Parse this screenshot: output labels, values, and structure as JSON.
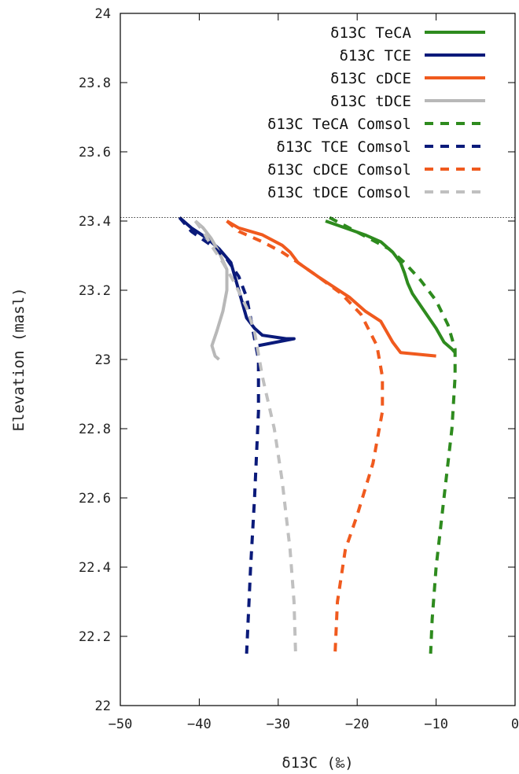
{
  "chart_data": {
    "type": "line",
    "xlabel": "δ13C (‰)",
    "ylabel": "Elevation (masl)",
    "xlim": [
      -50,
      0
    ],
    "ylim": [
      22,
      24
    ],
    "xticks": [
      -50,
      -40,
      -30,
      -20,
      -10,
      0
    ],
    "xtick_labels": [
      "−50",
      "−40",
      "−30",
      "−20",
      "−10",
      "0"
    ],
    "yticks": [
      22,
      22.2,
      22.4,
      22.6,
      22.8,
      23,
      23.2,
      23.4,
      23.6,
      23.8,
      24
    ],
    "ytick_labels": [
      "22",
      "22.2",
      "22.4",
      "22.6",
      "22.8",
      "23",
      "23.2",
      "23.4",
      "23.6",
      "23.8",
      "24"
    ],
    "reference_line": {
      "y": 23.41,
      "style": "dotted"
    },
    "legend_position": "top-right",
    "series": [
      {
        "name": "δ13C TeCA",
        "color": "#2e8b1e",
        "style": "solid",
        "x": [
          -24.0,
          -21.5,
          -19.0,
          -17.0,
          -15.5,
          -14.5,
          -14.0,
          -13.6,
          -13.0,
          -11.5,
          -10.0,
          -9.0,
          -8.0,
          -7.6
        ],
        "y": [
          23.4,
          23.38,
          23.36,
          23.34,
          23.31,
          23.28,
          23.25,
          23.22,
          23.19,
          23.14,
          23.09,
          23.05,
          23.03,
          23.02
        ]
      },
      {
        "name": "δ13C TCE",
        "color": "#0a1a7a",
        "style": "solid",
        "x": [
          -42.5,
          -41.0,
          -39.0,
          -37.5,
          -36.0,
          -35.5,
          -35.0,
          -34.5,
          -34.0,
          -33.0,
          -32.0,
          -29.0,
          -28.0,
          -32.5
        ],
        "y": [
          23.41,
          23.38,
          23.35,
          23.32,
          23.28,
          23.24,
          23.2,
          23.16,
          23.12,
          23.09,
          23.07,
          23.06,
          23.06,
          23.04
        ]
      },
      {
        "name": "δ13C cDCE",
        "color": "#f05a1e",
        "style": "solid",
        "x": [
          -36.5,
          -35.0,
          -32.0,
          -29.5,
          -28.5,
          -27.5,
          -25.0,
          -21.0,
          -19.0,
          -17.0,
          -16.0,
          -15.5,
          -14.5,
          -10.0
        ],
        "y": [
          23.4,
          23.38,
          23.36,
          23.33,
          23.31,
          23.28,
          23.24,
          23.18,
          23.14,
          23.11,
          23.07,
          23.05,
          23.02,
          23.01
        ]
      },
      {
        "name": "δ13C tDCE",
        "color": "#b8b8b8",
        "style": "solid",
        "x": [
          -40.5,
          -39.5,
          -38.5,
          -37.5,
          -36.5,
          -36.5,
          -37.0,
          -37.8,
          -38.4,
          -38.0,
          -37.5
        ],
        "y": [
          23.4,
          23.38,
          23.35,
          23.31,
          23.26,
          23.2,
          23.14,
          23.08,
          23.04,
          23.01,
          23.0
        ]
      },
      {
        "name": "δ13C TeCA Comsol",
        "color": "#2e8b1e",
        "style": "dashed",
        "x": [
          -23.5,
          -21.0,
          -18.5,
          -16.0,
          -14.0,
          -12.0,
          -10.0,
          -8.5,
          -7.6,
          -7.6,
          -8.0,
          -9.0,
          -10.0,
          -10.5,
          -10.7
        ],
        "y": [
          23.41,
          23.38,
          23.35,
          23.32,
          23.28,
          23.23,
          23.17,
          23.1,
          23.03,
          22.95,
          22.8,
          22.6,
          22.4,
          22.25,
          22.15
        ]
      },
      {
        "name": "δ13C TCE Comsol",
        "color": "#0a1a7a",
        "style": "dashed",
        "x": [
          -42.5,
          -41.0,
          -38.5,
          -36.5,
          -35.0,
          -34.0,
          -33.5,
          -33.0,
          -32.5,
          -32.5,
          -33.0,
          -33.5,
          -34.0
        ],
        "y": [
          23.41,
          23.37,
          23.33,
          23.29,
          23.24,
          23.18,
          23.12,
          23.06,
          23.0,
          22.85,
          22.6,
          22.4,
          22.15
        ]
      },
      {
        "name": "δ13C cDCE Comsol",
        "color": "#f05a1e",
        "style": "dashed",
        "x": [
          -36.5,
          -35.0,
          -32.0,
          -29.5,
          -27.5,
          -25.0,
          -22.0,
          -19.5,
          -17.5,
          -16.8,
          -16.8,
          -18.0,
          -20.0,
          -21.5,
          -22.5,
          -22.8
        ],
        "y": [
          23.4,
          23.37,
          23.34,
          23.31,
          23.28,
          23.24,
          23.19,
          23.13,
          23.04,
          22.95,
          22.85,
          22.7,
          22.55,
          22.45,
          22.3,
          22.15
        ]
      },
      {
        "name": "δ13C tDCE Comsol",
        "color": "#c0c0c0",
        "style": "dashed",
        "x": [
          -40.5,
          -39.5,
          -38.5,
          -37.0,
          -35.5,
          -34.0,
          -33.0,
          -32.0,
          -30.5,
          -29.5,
          -28.5,
          -28.0,
          -27.8
        ],
        "y": [
          23.4,
          23.37,
          23.33,
          23.28,
          23.22,
          23.15,
          23.08,
          22.95,
          22.8,
          22.65,
          22.45,
          22.3,
          22.15
        ]
      }
    ]
  }
}
